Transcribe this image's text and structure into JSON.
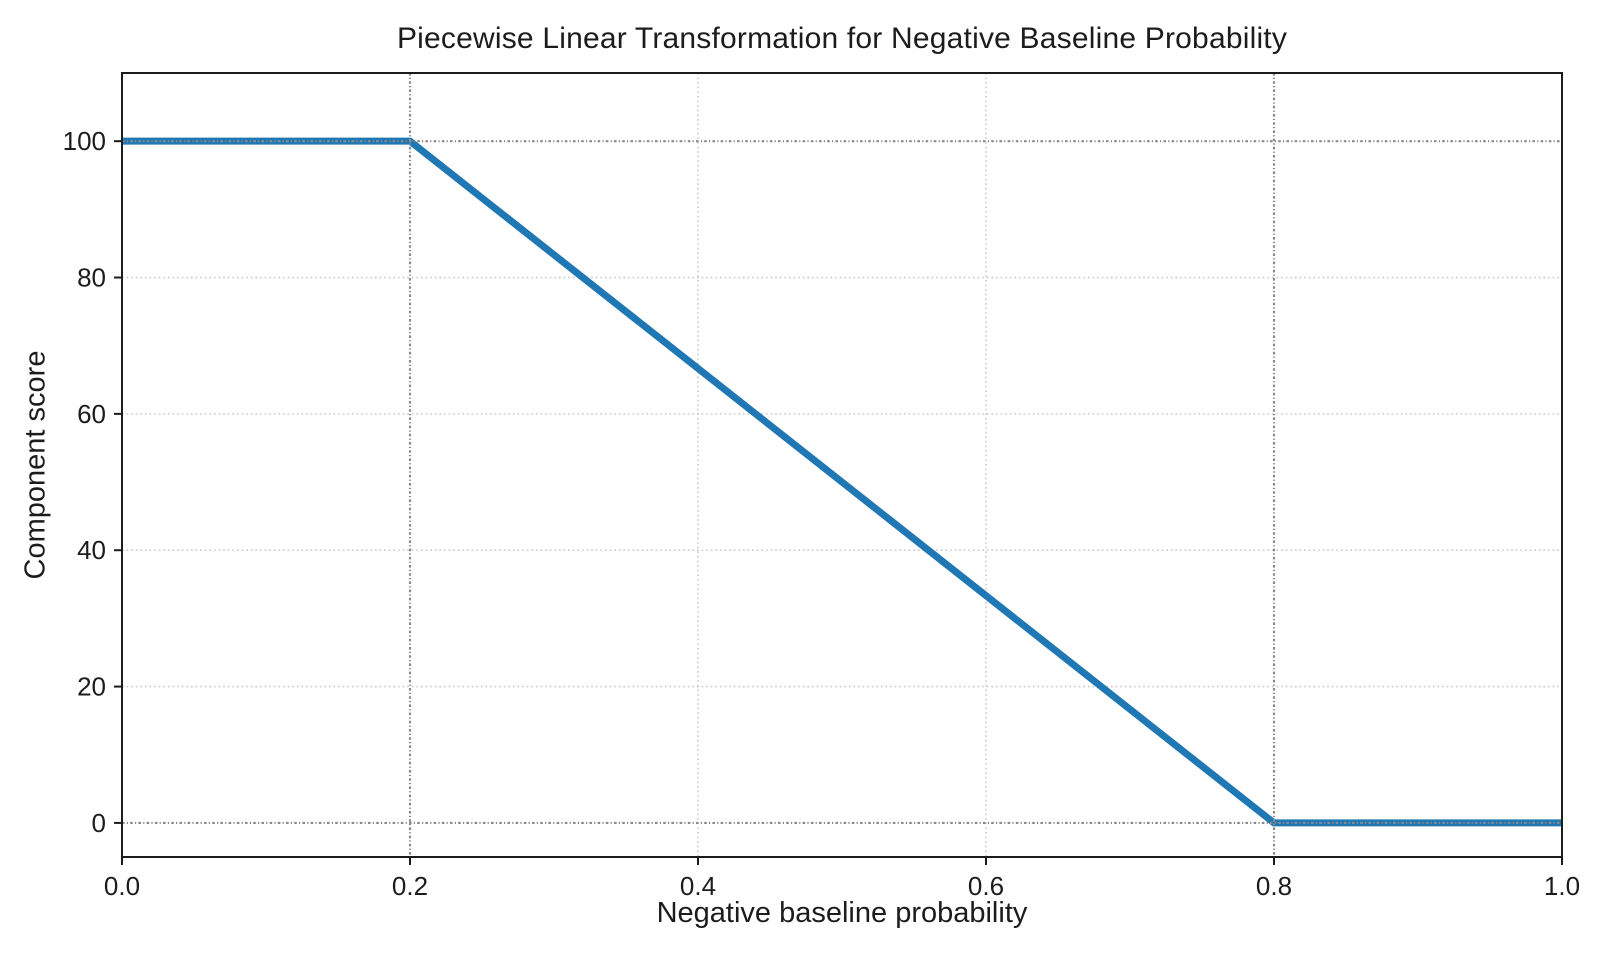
{
  "figure": {
    "background": "#ffffff"
  },
  "chart_data": {
    "type": "line",
    "title": "Piecewise Linear Transformation for Negative Baseline Probability",
    "xlabel": "Negative baseline probability",
    "ylabel": "Component score",
    "series": [
      {
        "name": "component-score-curve",
        "x": [
          0.0,
          0.2,
          0.8,
          1.0
        ],
        "y": [
          100,
          100,
          0,
          0
        ],
        "color": "#1f77b4",
        "linewidth": 7
      }
    ],
    "xlim": [
      0.0,
      1.0
    ],
    "ylim": [
      -5,
      110
    ],
    "xticks": [
      0.0,
      0.2,
      0.4,
      0.6,
      0.8,
      1.0
    ],
    "xtick_labels": [
      "0.0",
      "0.2",
      "0.4",
      "0.6",
      "0.8",
      "1.0"
    ],
    "yticks": [
      0,
      20,
      40,
      60,
      80,
      100
    ],
    "ytick_labels": [
      "0",
      "20",
      "40",
      "60",
      "80",
      "100"
    ],
    "grid": {
      "visible": true,
      "linestyle": "dotted",
      "color": "#c9c9c9"
    },
    "reference_lines": {
      "vertical_x": [
        0.2,
        0.8
      ],
      "horizontal_y": [
        0,
        100
      ],
      "color": "#8a8a8a",
      "linestyle": "dash-dot"
    },
    "legend": {
      "visible": false
    }
  },
  "colors": {
    "spine": "#1c1c1c",
    "tick_text": "#1c1c1c"
  }
}
